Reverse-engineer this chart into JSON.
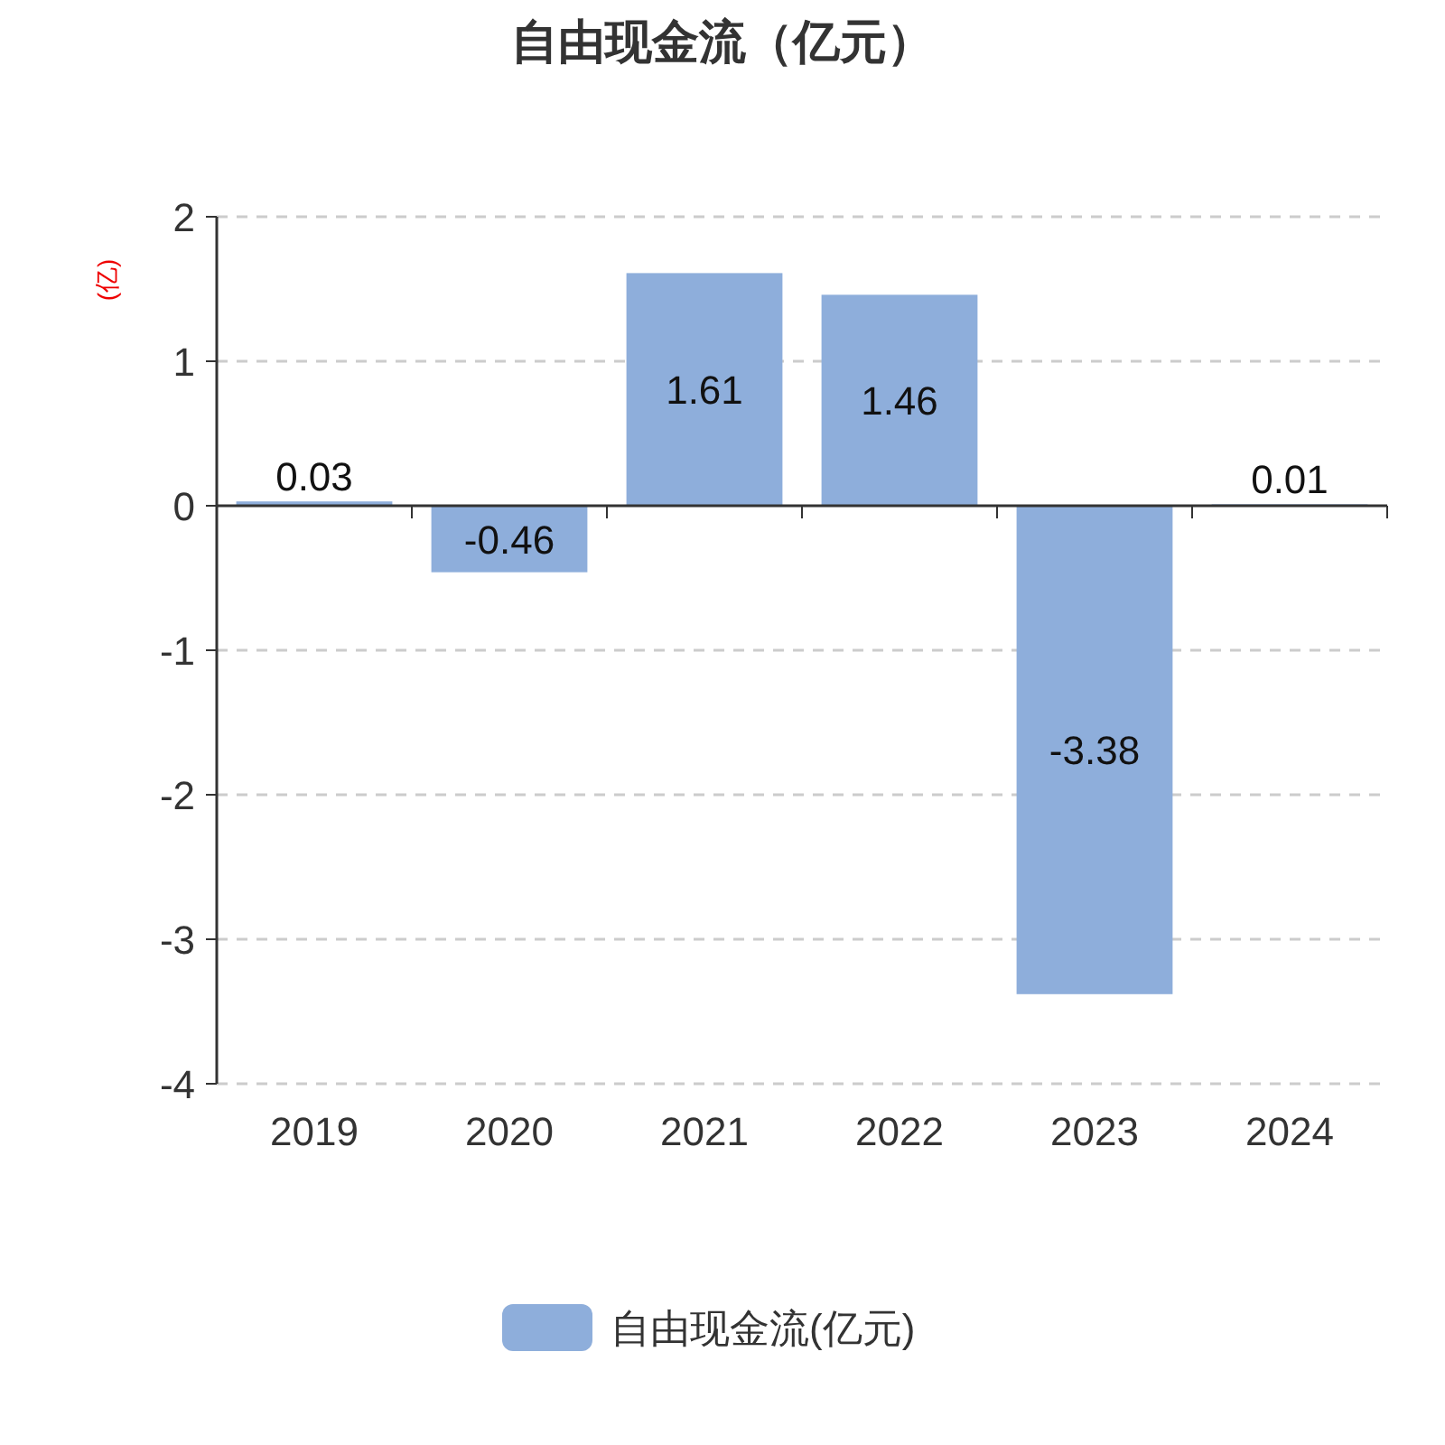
{
  "chart_data": {
    "type": "bar",
    "title": "自由现金流（亿元）",
    "ylabel": "(亿)",
    "categories": [
      "2019",
      "2020",
      "2021",
      "2022",
      "2023",
      "2024"
    ],
    "series": [
      {
        "name": "自由现金流(亿元)",
        "color": "#8eaedb",
        "values": [
          0.03,
          -0.46,
          1.61,
          1.46,
          -3.38,
          0.01
        ]
      }
    ],
    "ylim": [
      -4,
      2
    ],
    "yticks": [
      -4,
      -3,
      -2,
      -1,
      0,
      1,
      2
    ],
    "grid": "y",
    "legend": "bottom",
    "data_labels": true
  }
}
